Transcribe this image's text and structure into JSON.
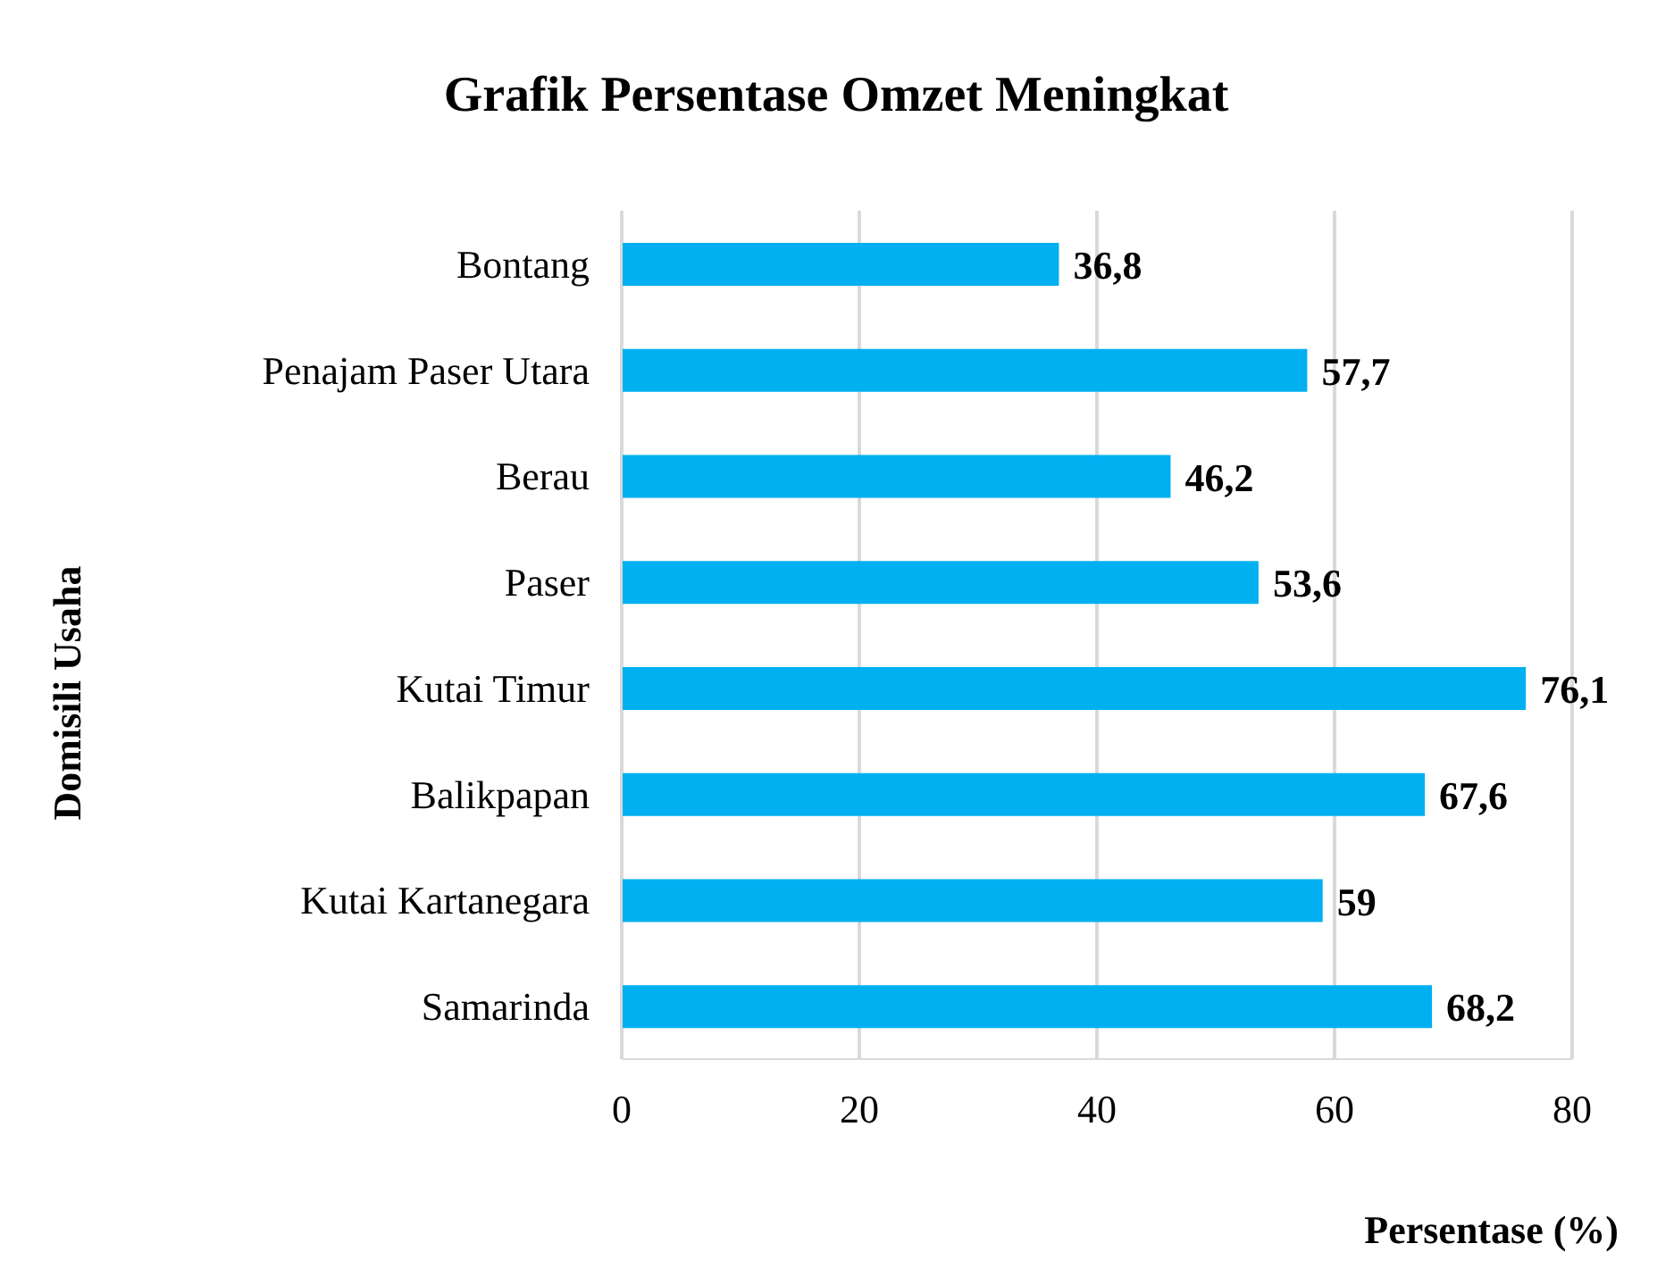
{
  "chart_data": {
    "type": "bar",
    "orientation": "horizontal",
    "title": "Grafik Persentase Omzet Meningkat",
    "xlabel": "Persentase (%)",
    "ylabel": "Domisili Usaha",
    "categories": [
      "Bontang",
      "Penajam Paser Utara",
      "Berau",
      "Paser",
      "Kutai Timur",
      "Balikpapan",
      "Kutai Kartanegara",
      "Samarinda"
    ],
    "values": [
      36.8,
      57.7,
      46.2,
      53.6,
      76.1,
      67.6,
      59,
      68.2
    ],
    "value_labels": [
      "36,8",
      "57,7",
      "46,2",
      "53,6",
      "76,1",
      "67,6",
      "59",
      "68,2"
    ],
    "color": "#00b0f0",
    "xlim": [
      0,
      80
    ],
    "xticks": [
      0,
      20,
      40,
      60,
      80
    ],
    "grid": "x",
    "legend": false
  }
}
